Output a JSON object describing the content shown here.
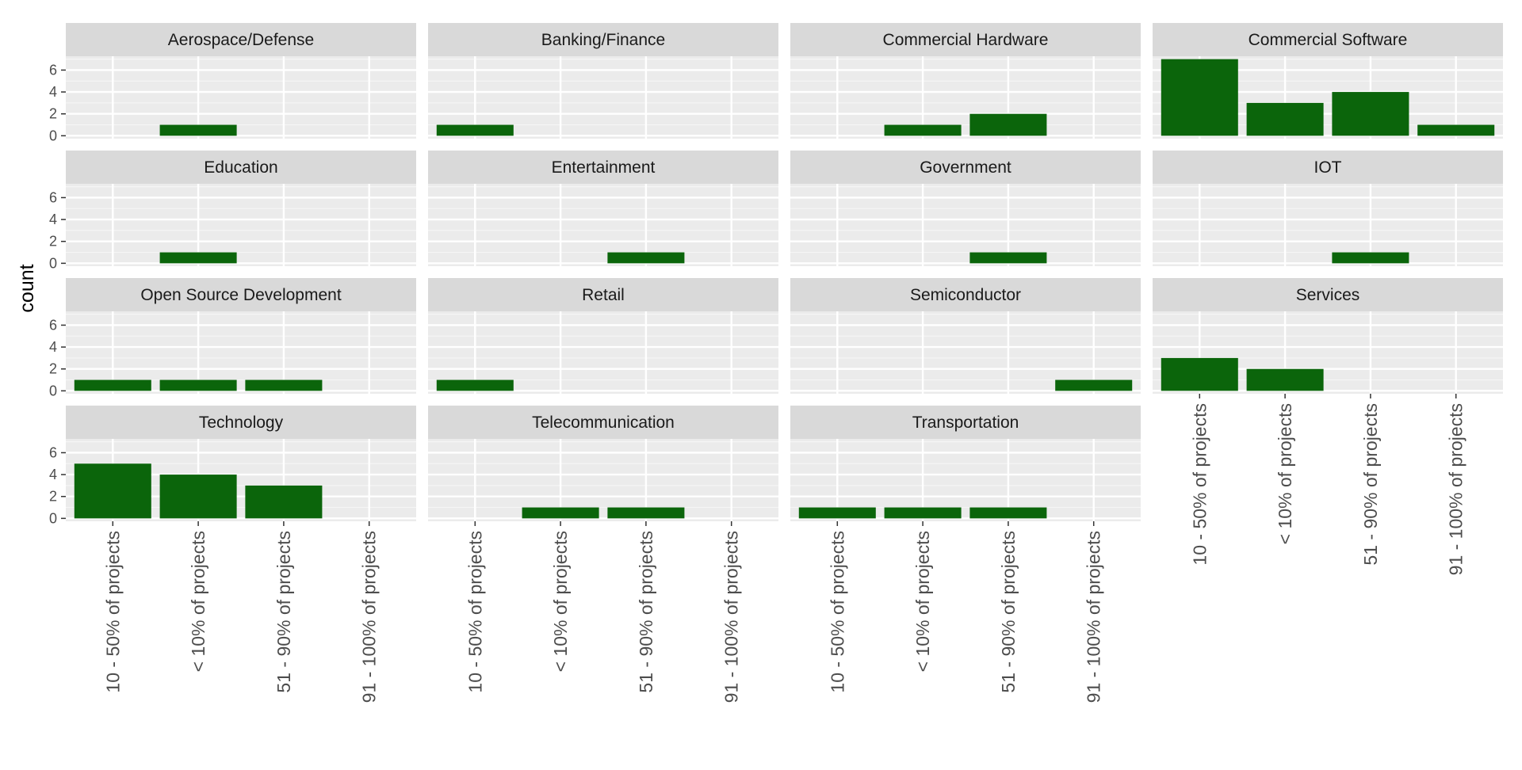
{
  "chart_data": {
    "type": "bar",
    "ylabel": "count",
    "xlabel": "",
    "ylim": [
      0,
      7
    ],
    "yticks": [
      "0",
      "2",
      "4",
      "6"
    ],
    "categories": [
      "10 - 50% of projects",
      "< 10% of projects",
      "51 - 90% of projects",
      "91 - 100%  of projects"
    ],
    "bar_color": "#0b650b",
    "panel_background": "#ebebeb",
    "strip_background": "#d9d9d9",
    "grid": true,
    "panels": [
      {
        "name": "Aerospace/Defense",
        "values": [
          0,
          1,
          0,
          0
        ]
      },
      {
        "name": "Banking/Finance",
        "values": [
          1,
          0,
          0,
          0
        ]
      },
      {
        "name": "Commercial Hardware",
        "values": [
          0,
          1,
          2,
          0
        ]
      },
      {
        "name": "Commercial Software",
        "values": [
          7,
          3,
          4,
          1
        ]
      },
      {
        "name": "Education",
        "values": [
          0,
          1,
          0,
          0
        ]
      },
      {
        "name": "Entertainment",
        "values": [
          0,
          0,
          1,
          0
        ]
      },
      {
        "name": "Government",
        "values": [
          0,
          0,
          1,
          0
        ]
      },
      {
        "name": "IOT",
        "values": [
          0,
          0,
          1,
          0
        ]
      },
      {
        "name": "Open Source Development",
        "values": [
          1,
          1,
          1,
          0
        ]
      },
      {
        "name": "Retail",
        "values": [
          1,
          0,
          0,
          0
        ]
      },
      {
        "name": "Semiconductor",
        "values": [
          0,
          0,
          0,
          1
        ]
      },
      {
        "name": "Services",
        "values": [
          3,
          2,
          0,
          0
        ]
      },
      {
        "name": "Technology",
        "values": [
          5,
          4,
          3,
          0
        ]
      },
      {
        "name": "Telecommunication",
        "values": [
          0,
          1,
          1,
          0
        ]
      },
      {
        "name": "Transportation",
        "values": [
          1,
          1,
          1,
          0
        ]
      }
    ]
  }
}
